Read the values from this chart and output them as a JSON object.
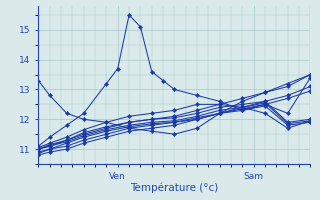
{
  "xlabel": "Température (°c)",
  "bg_color": "#daeaea",
  "line_color": "#1a3aaa",
  "grid_color": "#a8c8c8",
  "axis_color": "#2244bb",
  "label_color": "#2244bb",
  "ylim": [
    10.5,
    15.8
  ],
  "xlim": [
    0,
    48
  ],
  "ven_x": 14,
  "sam_x": 38,
  "series": [
    {
      "x": [
        0,
        2,
        5,
        8,
        12,
        16,
        20,
        24,
        28,
        32,
        36,
        40,
        44,
        48
      ],
      "y": [
        13.3,
        12.8,
        12.2,
        12.0,
        11.9,
        11.7,
        11.6,
        11.5,
        11.7,
        12.2,
        12.6,
        12.9,
        13.2,
        13.5
      ]
    },
    {
      "x": [
        0,
        2,
        5,
        8,
        12,
        16,
        20,
        24,
        28,
        32,
        36,
        40,
        44,
        48
      ],
      "y": [
        11.0,
        11.1,
        11.3,
        11.5,
        11.7,
        11.9,
        12.0,
        12.1,
        12.3,
        12.5,
        12.7,
        12.9,
        13.1,
        13.5
      ]
    },
    {
      "x": [
        0,
        2,
        5,
        8,
        12,
        16,
        20,
        24,
        28,
        32,
        36,
        40,
        44,
        48
      ],
      "y": [
        10.85,
        11.0,
        11.1,
        11.3,
        11.5,
        11.7,
        11.8,
        11.9,
        12.05,
        12.2,
        12.4,
        12.6,
        12.8,
        13.1
      ]
    },
    {
      "x": [
        0,
        2,
        5,
        8,
        12,
        16,
        20,
        24,
        28,
        32,
        36,
        40,
        44,
        48
      ],
      "y": [
        10.8,
        10.9,
        11.0,
        11.2,
        11.4,
        11.6,
        11.7,
        11.8,
        12.0,
        12.2,
        12.35,
        12.5,
        12.7,
        12.95
      ]
    },
    {
      "x": [
        0,
        2,
        5,
        8,
        12,
        16,
        20,
        24,
        28,
        32,
        36,
        40,
        44,
        48
      ],
      "y": [
        10.9,
        11.0,
        11.2,
        11.4,
        11.6,
        11.75,
        11.85,
        11.9,
        12.0,
        12.2,
        12.3,
        12.45,
        11.8,
        11.9
      ]
    },
    {
      "x": [
        0,
        2,
        5,
        8,
        12,
        16,
        20,
        24,
        28,
        32,
        36,
        40,
        44,
        48
      ],
      "y": [
        11.0,
        11.1,
        11.25,
        11.45,
        11.65,
        11.8,
        11.9,
        11.95,
        12.1,
        12.3,
        12.4,
        12.55,
        11.85,
        11.95
      ]
    },
    {
      "x": [
        0,
        2,
        5,
        8,
        12,
        16,
        20,
        24,
        28,
        32,
        36,
        40,
        44,
        48
      ],
      "y": [
        11.0,
        11.15,
        11.3,
        11.55,
        11.75,
        11.9,
        12.0,
        12.05,
        12.2,
        12.4,
        12.5,
        12.6,
        11.9,
        12.0
      ]
    },
    {
      "x": [
        0,
        2,
        5,
        8,
        12,
        14,
        16,
        18,
        20,
        22,
        24,
        28,
        32,
        36,
        40,
        44,
        48
      ],
      "y": [
        11.1,
        11.4,
        11.8,
        12.2,
        13.2,
        13.7,
        15.5,
        15.1,
        13.6,
        13.3,
        13.0,
        12.8,
        12.6,
        12.3,
        12.5,
        12.2,
        13.4
      ]
    },
    {
      "x": [
        0,
        2,
        5,
        8,
        12,
        16,
        20,
        24,
        28,
        32,
        36,
        40,
        44,
        48
      ],
      "y": [
        11.05,
        11.2,
        11.4,
        11.65,
        11.9,
        12.1,
        12.2,
        12.3,
        12.5,
        12.5,
        12.4,
        12.2,
        11.7,
        11.95
      ]
    }
  ]
}
